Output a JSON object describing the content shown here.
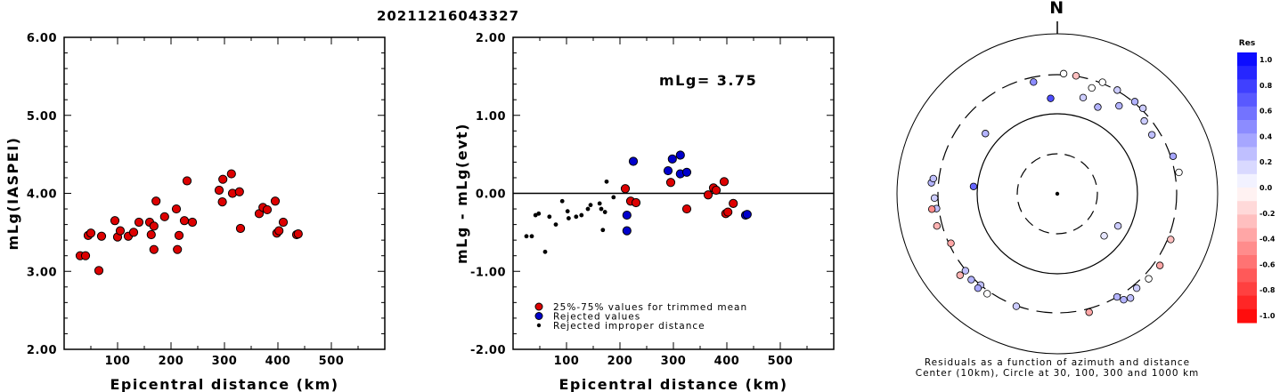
{
  "title": "20211216043327",
  "colors": {
    "accepted": "#dd0000",
    "rejected": "#0000cc",
    "improper": "#000000"
  },
  "chart_data": [
    {
      "type": "scatter",
      "name": "magnitude-vs-distance",
      "xlabel": "Epicentral distance (km)",
      "ylabel": "mLg(IASPEI)",
      "xlim": [
        0,
        600
      ],
      "ylim": [
        2.0,
        6.0
      ],
      "xticks": [
        "100",
        "200",
        "300",
        "400",
        "500"
      ],
      "yticks": [
        "2.00",
        "3.00",
        "4.00",
        "5.00",
        "6.00"
      ],
      "points": [
        [
          30,
          3.2
        ],
        [
          40,
          3.2
        ],
        [
          45,
          3.46
        ],
        [
          50,
          3.49
        ],
        [
          65,
          3.01
        ],
        [
          70,
          3.45
        ],
        [
          95,
          3.65
        ],
        [
          100,
          3.44
        ],
        [
          105,
          3.52
        ],
        [
          120,
          3.45
        ],
        [
          130,
          3.5
        ],
        [
          140,
          3.63
        ],
        [
          160,
          3.63
        ],
        [
          163,
          3.47
        ],
        [
          168,
          3.58
        ],
        [
          168,
          3.28
        ],
        [
          172,
          3.9
        ],
        [
          188,
          3.7
        ],
        [
          210,
          3.8
        ],
        [
          212,
          3.28
        ],
        [
          215,
          3.46
        ],
        [
          225,
          3.65
        ],
        [
          230,
          4.16
        ],
        [
          240,
          3.63
        ],
        [
          290,
          4.04
        ],
        [
          296,
          3.89
        ],
        [
          297,
          4.18
        ],
        [
          313,
          4.25
        ],
        [
          315,
          4.0
        ],
        [
          328,
          4.02
        ],
        [
          330,
          3.55
        ],
        [
          365,
          3.74
        ],
        [
          372,
          3.82
        ],
        [
          380,
          3.79
        ],
        [
          395,
          3.9
        ],
        [
          398,
          3.49
        ],
        [
          402,
          3.52
        ],
        [
          410,
          3.63
        ],
        [
          435,
          3.47
        ],
        [
          438,
          3.48
        ]
      ]
    },
    {
      "type": "scatter",
      "name": "residual-vs-distance",
      "xlabel": "Epicentral distance (km)",
      "ylabel": "mLg - mLg(evt)",
      "xlim": [
        0,
        600
      ],
      "ylim": [
        -2.0,
        2.0
      ],
      "xticks": [
        "100",
        "200",
        "300",
        "400",
        "500"
      ],
      "yticks": [
        "-2.00",
        "-1.00",
        "0.00",
        "1.00",
        "2.00"
      ],
      "annotation": "mLg= 3.75",
      "legend": [
        "25%-75% values for trimmed mean",
        "Rejected values",
        "Rejected improper distance"
      ],
      "series": [
        {
          "category": "trimmed",
          "points": [
            [
              210,
              0.06
            ],
            [
              220,
              -0.1
            ],
            [
              230,
              -0.12
            ],
            [
              295,
              0.14
            ],
            [
              325,
              -0.2
            ],
            [
              365,
              -0.02
            ],
            [
              375,
              0.07
            ],
            [
              380,
              0.04
            ],
            [
              395,
              0.15
            ],
            [
              398,
              -0.26
            ],
            [
              402,
              -0.24
            ],
            [
              412,
              -0.13
            ]
          ]
        },
        {
          "category": "rejected",
          "points": [
            [
              213,
              -0.28
            ],
            [
              213,
              -0.48
            ],
            [
              225,
              0.41
            ],
            [
              290,
              0.29
            ],
            [
              298,
              0.44
            ],
            [
              313,
              0.49
            ],
            [
              313,
              0.25
            ],
            [
              325,
              0.27
            ],
            [
              435,
              -0.28
            ],
            [
              438,
              -0.27
            ]
          ]
        },
        {
          "category": "improper",
          "points": [
            [
              25,
              -0.55
            ],
            [
              35,
              -0.55
            ],
            [
              42,
              -0.28
            ],
            [
              48,
              -0.26
            ],
            [
              60,
              -0.75
            ],
            [
              68,
              -0.3
            ],
            [
              80,
              -0.4
            ],
            [
              92,
              -0.1
            ],
            [
              102,
              -0.23
            ],
            [
              104,
              -0.32
            ],
            [
              118,
              -0.3
            ],
            [
              128,
              -0.28
            ],
            [
              140,
              -0.2
            ],
            [
              145,
              -0.15
            ],
            [
              162,
              -0.13
            ],
            [
              165,
              -0.2
            ],
            [
              168,
              -0.47
            ],
            [
              172,
              -0.24
            ],
            [
              175,
              0.15
            ],
            [
              188,
              -0.05
            ]
          ]
        }
      ]
    },
    {
      "type": "polar-scatter",
      "name": "residual-azimuth-map",
      "north_label": "N",
      "caption_line1": "Residuals as a function of azimuth and distance",
      "caption_line2": "Center (10km), Circle at 30, 100, 300 and 1000 km",
      "colorbar_title": "Res",
      "colorbar_ticks": [
        "1.0",
        "0.8",
        "0.6",
        "0.4",
        "0.2",
        "0.0",
        "-0.2",
        "-0.4",
        "-0.6",
        "-0.8",
        "-1.0"
      ],
      "points": [
        {
          "az": 3,
          "dist": 320,
          "res": 0.0
        },
        {
          "az": 9,
          "dist": 305,
          "res": 0.25
        },
        {
          "az": 348,
          "dist": 275,
          "res": -0.45
        },
        {
          "az": 356,
          "dist": 180,
          "res": -0.7
        },
        {
          "az": 22,
          "dist": 320,
          "res": 0.0
        },
        {
          "az": 30,
          "dist": 310,
          "res": -0.2
        },
        {
          "az": 18,
          "dist": 260,
          "res": 0.0
        },
        {
          "az": 40,
          "dist": 320,
          "res": -0.3
        },
        {
          "az": 45,
          "dist": 330,
          "res": -0.2
        },
        {
          "az": 35,
          "dist": 240,
          "res": -0.3
        },
        {
          "az": 50,
          "dist": 270,
          "res": -0.2
        },
        {
          "az": 58,
          "dist": 260,
          "res": -0.25
        },
        {
          "az": 15,
          "dist": 200,
          "res": -0.2
        },
        {
          "az": 25,
          "dist": 180,
          "res": -0.3
        },
        {
          "az": 72,
          "dist": 340,
          "res": -0.35
        },
        {
          "az": 80,
          "dist": 370,
          "res": 0.0
        },
        {
          "az": 132,
          "dist": 70,
          "res": -0.1
        },
        {
          "az": 118,
          "dist": 80,
          "res": -0.2
        },
        {
          "az": 112,
          "dist": 350,
          "res": 0.25
        },
        {
          "az": 125,
          "dist": 400,
          "res": 0.35
        },
        {
          "az": 133,
          "dist": 395,
          "res": 0.0
        },
        {
          "az": 140,
          "dist": 370,
          "res": -0.2
        },
        {
          "az": 145,
          "dist": 440,
          "res": -0.25
        },
        {
          "az": 148,
          "dist": 400,
          "res": -0.3
        },
        {
          "az": 150,
          "dist": 300,
          "res": -0.3
        },
        {
          "az": 165,
          "dist": 360,
          "res": 0.35
        },
        {
          "az": 200,
          "dist": 310,
          "res": -0.2
        },
        {
          "az": 215,
          "dist": 350,
          "res": 0.0
        },
        {
          "az": 220,
          "dist": 300,
          "res": -0.25
        },
        {
          "az": 225,
          "dist": 340,
          "res": -0.3
        },
        {
          "az": 230,
          "dist": 310,
          "res": -0.25
        },
        {
          "az": 220,
          "dist": 370,
          "res": -0.35
        },
        {
          "az": 230,
          "dist": 430,
          "res": 0.3
        },
        {
          "az": 245,
          "dist": 290,
          "res": 0.35
        },
        {
          "az": 255,
          "dist": 390,
          "res": 0.3
        },
        {
          "az": 263,
          "dist": 340,
          "res": -0.25
        },
        {
          "az": 268,
          "dist": 360,
          "res": -0.2
        },
        {
          "az": 263,
          "dist": 420,
          "res": 0.45
        },
        {
          "az": 275,
          "dist": 420,
          "res": -0.3
        },
        {
          "az": 277,
          "dist": 395,
          "res": -0.25
        },
        {
          "az": 310,
          "dist": 170,
          "res": -0.3
        },
        {
          "az": 275,
          "dist": 120,
          "res": -0.6
        }
      ]
    }
  ]
}
